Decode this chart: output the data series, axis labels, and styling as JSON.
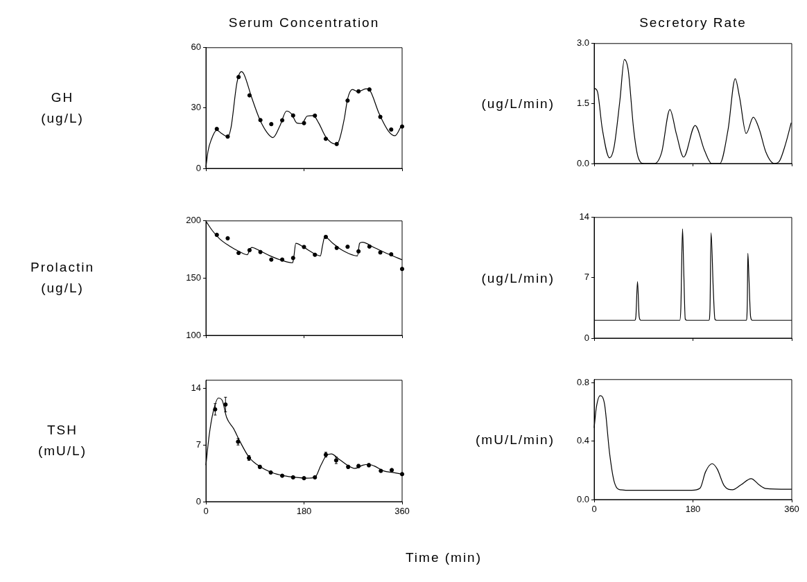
{
  "chart_data": [
    {
      "type": "line",
      "title": "Serum Concentration",
      "ylabel": "GH\n(ug/L)",
      "xlim": [
        0,
        360
      ],
      "xticks": [
        0,
        180,
        360
      ],
      "ylim": [
        0,
        60
      ],
      "yticks": [
        0,
        30,
        60
      ],
      "tick_labels": "y",
      "series": [
        {
          "type": "line",
          "color": "#000000",
          "marker": "none",
          "x": [
            0,
            4,
            10,
            20,
            29,
            40,
            46,
            57,
            65,
            70,
            84,
            99,
            112,
            123,
            136,
            148,
            157,
            167,
            176,
            186,
            197,
            207,
            220,
            237,
            243,
            254,
            260,
            269,
            279,
            294,
            301,
            318,
            335,
            347,
            358
          ],
          "values": [
            0.6,
            8.7,
            14.4,
            19,
            17.3,
            15.8,
            20.2,
            42.7,
            48.1,
            46.7,
            35.2,
            24.2,
            17.9,
            15.3,
            21.3,
            28.5,
            27.1,
            22.5,
            22.3,
            26,
            26.2,
            22.5,
            15.6,
            12.1,
            13,
            24.8,
            34.6,
            39.2,
            38.1,
            39.6,
            38.7,
            27.1,
            18.5,
            16.2,
            20.8
          ]
        },
        {
          "type": "scatter",
          "color": "#000000",
          "marker": "circle",
          "x": [
            20,
            40,
            60,
            80,
            100,
            120,
            140,
            160,
            180,
            200,
            220,
            240,
            260,
            280,
            300,
            320,
            340,
            360
          ],
          "values": [
            19.6,
            15.8,
            45.4,
            36.3,
            24,
            22,
            23.9,
            26.3,
            22.5,
            26.2,
            14.7,
            12.1,
            33.7,
            38.3,
            39.2,
            25.6,
            19.3,
            20.8
          ]
        }
      ]
    },
    {
      "type": "line",
      "title": "Secretory Rate",
      "ylabel": "(ug/L/min)",
      "xlim": [
        0,
        360
      ],
      "xticks": [
        0,
        180,
        360
      ],
      "ylim": [
        0,
        3
      ],
      "yticks": [
        {
          "value": 0,
          "label": "0.0"
        },
        {
          "value": 1.5,
          "label": "1.5"
        },
        {
          "value": 3,
          "label": "3.0"
        }
      ],
      "tick_labels": "y",
      "series": [
        {
          "type": "line",
          "color": "#000000",
          "marker": "none",
          "x": [
            1,
            6,
            15,
            28,
            36,
            47,
            55,
            62,
            72,
            80,
            91,
            110,
            123,
            138,
            150,
            163,
            184,
            201,
            214,
            229,
            244,
            257,
            265,
            277,
            290,
            301,
            313,
            328,
            337,
            349,
            359
          ],
          "values": [
            1.88,
            1.8,
            0.85,
            0.14,
            0.39,
            1.59,
            2.6,
            2.34,
            0.85,
            0.16,
            0,
            0,
            0.28,
            1.35,
            0.73,
            0.16,
            0.95,
            0.33,
            0,
            0,
            0.85,
            2.12,
            1.65,
            0.75,
            1.16,
            0.85,
            0.28,
            0,
            0.05,
            0.5,
            1.02
          ]
        }
      ]
    },
    {
      "type": "line",
      "ylabel": "Prolactin\n(ug/L)",
      "xlim": [
        0,
        360
      ],
      "xticks": [
        0,
        180,
        360
      ],
      "ylim": [
        100,
        200
      ],
      "yticks": [
        100,
        150,
        200
      ],
      "tick_labels": "y",
      "series": [
        {
          "type": "line",
          "color": "#000000",
          "marker": "none",
          "x": [
            1,
            12,
            25,
            42,
            63,
            76,
            80,
            84,
            97,
            118,
            140,
            159,
            161,
            165,
            178,
            199,
            210,
            214,
            218,
            233,
            250,
            278,
            282,
            287,
            310,
            336,
            360
          ],
          "values": [
            199,
            191.4,
            184.4,
            178.4,
            172.8,
            170.4,
            174.4,
            176.8,
            174.4,
            169.4,
            165.4,
            163.4,
            167.4,
            180.4,
            177.4,
            171.4,
            169.4,
            178.4,
            186,
            180.4,
            174.4,
            169.4,
            180.4,
            181.4,
            176.4,
            170.8,
            166
          ]
        },
        {
          "type": "scatter",
          "color": "#000000",
          "marker": "circle",
          "x": [
            20,
            40,
            60,
            80,
            100,
            120,
            140,
            160,
            180,
            200,
            220,
            240,
            260,
            280,
            300,
            320,
            340,
            360
          ],
          "values": [
            187.8,
            184.8,
            172,
            174.4,
            172.8,
            166.2,
            166.2,
            167.6,
            177.2,
            170.4,
            186,
            176.4,
            177.4,
            173.4,
            177.6,
            172.4,
            170.8,
            158
          ]
        }
      ]
    },
    {
      "type": "line",
      "ylabel": "(ug/L/min)",
      "xlim": [
        0,
        360
      ],
      "xticks": [
        0,
        180,
        360
      ],
      "ylim": [
        0,
        14
      ],
      "yticks": [
        0,
        7,
        14
      ],
      "tick_labels": "y",
      "series": [
        {
          "type": "line",
          "color": "#000000",
          "marker": "none",
          "x": [
            0,
            74,
            76,
            79,
            82,
            85,
            156,
            158,
            161,
            163,
            166,
            169,
            209,
            211,
            213,
            217,
            220,
            223,
            277,
            279,
            280,
            282,
            285,
            288,
            360
          ],
          "values": [
            2.07,
            2.07,
            2.5,
            6.56,
            2.5,
            2.07,
            2.07,
            3.6,
            12.67,
            8.4,
            2.2,
            2.07,
            2.07,
            3.3,
            12.22,
            5.7,
            2.2,
            2.07,
            2.07,
            3.9,
            9.83,
            7,
            2.5,
            2.07,
            2.07
          ]
        }
      ]
    },
    {
      "type": "line",
      "ylabel": "TSH\n(mU/L)",
      "xlabel": "Time (min)",
      "xlim": [
        0,
        360
      ],
      "xticks": [
        0,
        180,
        360
      ],
      "ylim": [
        0,
        15
      ],
      "yticks": [
        0,
        7,
        14
      ],
      "series": [
        {
          "type": "line",
          "color": "#000000",
          "marker": "none",
          "x": [
            0,
            6,
            13,
            23,
            30,
            38,
            51,
            62,
            79,
            100,
            121,
            143,
            164,
            185,
            200,
            211,
            221,
            230,
            245,
            262,
            273,
            288,
            298,
            309,
            326,
            343,
            360
          ],
          "values": [
            4.5,
            8.2,
            11,
            12.8,
            12.5,
            10.4,
            9,
            7.5,
            5.5,
            4.3,
            3.6,
            3.2,
            3,
            2.9,
            3,
            4.5,
            5.7,
            5.9,
            5.2,
            4.4,
            4.1,
            4.5,
            4.6,
            4.4,
            3.8,
            3.6,
            3.4
          ]
        },
        {
          "type": "scatter",
          "color": "#000000",
          "marker": "circle",
          "x": [
            17,
            36,
            59,
            79,
            99,
            119,
            140,
            160,
            180,
            200,
            220,
            239,
            261,
            280,
            299,
            321,
            341,
            360
          ],
          "values": [
            11.4,
            12,
            7.4,
            5.4,
            4.3,
            3.6,
            3.2,
            3,
            2.9,
            3,
            5.8,
            5.1,
            4.3,
            4.4,
            4.5,
            3.8,
            3.9,
            3.4
          ],
          "errors": [
            0.7,
            0.9,
            0.4,
            0.3,
            0.2,
            null,
            null,
            null,
            null,
            null,
            0.3,
            0.4,
            0.2,
            0.2,
            0.2,
            null,
            null,
            null
          ]
        }
      ]
    },
    {
      "type": "line",
      "ylabel": "(mU/L/min)",
      "xlim": [
        0,
        360
      ],
      "xticks": [
        0,
        180,
        360
      ],
      "ylim": [
        0,
        0.82
      ],
      "yticks": [
        {
          "value": 0,
          "label": "0.0"
        },
        {
          "value": 0.4,
          "label": "0.4"
        },
        {
          "value": 0.8,
          "label": "0.8"
        }
      ],
      "series": [
        {
          "type": "line",
          "color": "#000000",
          "marker": "none",
          "x": [
            0,
            4,
            11,
            19,
            28,
            36,
            47,
            72,
            178,
            193,
            203,
            215,
            224,
            237,
            252,
            267,
            286,
            301,
            313,
            360
          ],
          "values": [
            0.49,
            0.63,
            0.71,
            0.65,
            0.32,
            0.13,
            0.067,
            0.063,
            0.063,
            0.078,
            0.19,
            0.245,
            0.21,
            0.094,
            0.067,
            0.099,
            0.143,
            0.099,
            0.075,
            0.07
          ]
        }
      ]
    }
  ]
}
